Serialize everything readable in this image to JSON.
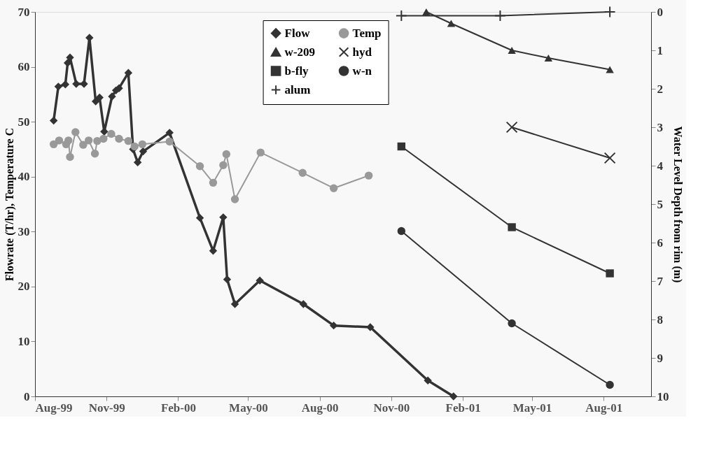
{
  "chart_data": {
    "type": "line",
    "ylabel": "Flowrate (T/hr), Temperature C",
    "y2label": "Water Level Depth from rim (m)",
    "xlim": [
      "1999-08-01",
      "2001-10-01"
    ],
    "xticks": [
      {
        "value": "1999-08-01",
        "label": "Aug-99"
      },
      {
        "value": "1999-11-01",
        "label": "Nov-99"
      },
      {
        "value": "2000-02-01",
        "label": "Feb-00"
      },
      {
        "value": "2000-05-01",
        "label": "May-00"
      },
      {
        "value": "2000-08-01",
        "label": "Aug-00"
      },
      {
        "value": "2000-11-01",
        "label": "Nov-00"
      },
      {
        "value": "2001-02-01",
        "label": "Feb-01"
      },
      {
        "value": "2001-05-01",
        "label": "May-01"
      },
      {
        "value": "2001-08-01",
        "label": "Aug-01"
      }
    ],
    "ylim": [
      0,
      70
    ],
    "yticks": [
      0,
      10,
      20,
      30,
      40,
      50,
      60,
      70
    ],
    "y2lim": [
      10,
      0
    ],
    "y2ticks": [
      0,
      1,
      2,
      3,
      4,
      5,
      6,
      7,
      8,
      9,
      10
    ],
    "grid": false,
    "legend": "top",
    "line_style": "solid",
    "series": [
      {
        "name": "Flow",
        "color": "#333333",
        "marker": "diamond",
        "x": [
          "1999-08-25",
          "1999-08-31",
          "1999-09-09",
          "1999-09-12",
          "1999-09-15",
          "1999-09-23",
          "1999-10-03",
          "1999-10-10",
          "1999-10-18",
          "1999-10-23",
          "1999-10-29",
          "1999-11-08",
          "1999-11-13",
          "1999-11-17",
          "1999-11-29",
          "1999-12-05",
          "1999-12-11",
          "1999-12-18",
          "2000-01-21",
          "2000-02-29",
          "2000-03-17",
          "2000-03-30",
          "2000-04-04",
          "2000-04-14",
          "2000-05-16",
          "2000-07-11",
          "2000-08-19",
          "2000-10-05",
          "2000-12-18",
          "2001-01-20"
        ],
        "values": [
          50.2,
          56.4,
          56.8,
          60.7,
          61.7,
          56.9,
          56.9,
          65.3,
          53.7,
          54.4,
          48.2,
          54.6,
          55.7,
          56.1,
          58.9,
          45.0,
          42.6,
          44.6,
          48.0,
          32.5,
          26.5,
          32.6,
          21.3,
          16.8,
          21.1,
          16.8,
          12.9,
          12.6,
          2.9,
          0
        ]
      },
      {
        "name": "Temp",
        "color": "#999999",
        "marker": "circle",
        "x": [
          "1999-08-25",
          "1999-09-01",
          "1999-09-10",
          "1999-09-13",
          "1999-09-15",
          "1999-09-22",
          "1999-10-02",
          "1999-10-09",
          "1999-10-17",
          "1999-10-20",
          "1999-10-28",
          "1999-11-07",
          "1999-11-17",
          "1999-11-29",
          "1999-12-07",
          "1999-12-17",
          "2000-01-21",
          "2000-02-29",
          "2000-03-17",
          "2000-03-30",
          "2000-04-03",
          "2000-04-14",
          "2000-05-17",
          "2000-07-10",
          "2000-08-19",
          "2000-10-03"
        ],
        "values": [
          45.9,
          46.6,
          45.9,
          46.6,
          43.6,
          48.1,
          45.8,
          46.6,
          44.2,
          46.5,
          46.9,
          47.8,
          46.9,
          46.5,
          45.5,
          45.9,
          46.4,
          41.9,
          38.9,
          42.1,
          44.1,
          35.9,
          44.4,
          40.7,
          37.9,
          40.2
        ]
      },
      {
        "name": "w-209",
        "color": "#333333",
        "marker": "triangle",
        "axis": "y2",
        "x": [
          "2000-12-16",
          "2001-01-17",
          "2001-04-05",
          "2001-05-22",
          "2001-08-09"
        ],
        "values": [
          0.0,
          0.3,
          1.0,
          1.2,
          1.5
        ]
      },
      {
        "name": "hyd",
        "color": "#333333",
        "marker": "cross",
        "axis": "y2",
        "x": [
          "2001-04-05",
          "2001-08-09"
        ],
        "values": [
          3.0,
          3.8
        ]
      },
      {
        "name": "b-fly",
        "color": "#333333",
        "marker": "square",
        "axis": "y2",
        "x": [
          "2000-11-14",
          "2001-04-05",
          "2001-08-09"
        ],
        "values": [
          3.5,
          5.6,
          6.8
        ]
      },
      {
        "name": "w-n",
        "color": "#333333",
        "marker": "circle",
        "axis": "y2",
        "x": [
          "2000-11-14",
          "2001-04-05",
          "2001-08-09"
        ],
        "values": [
          5.7,
          8.1,
          9.7
        ]
      },
      {
        "name": "alum",
        "color": "#333333",
        "marker": "plus",
        "axis": "y2",
        "x": [
          "2000-11-14",
          "2001-03-21",
          "2001-08-09"
        ],
        "values": [
          0.1,
          0.1,
          0.0
        ]
      }
    ]
  }
}
